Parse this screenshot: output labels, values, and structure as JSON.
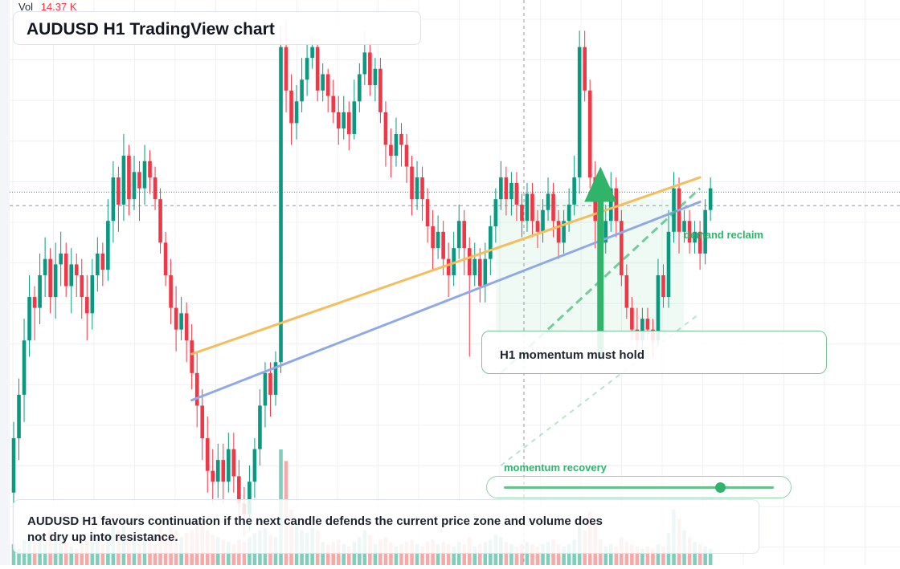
{
  "volume_readout": {
    "label": "Vol",
    "value": "14.37 K"
  },
  "title": "AUDUSD H1 TradingView chart",
  "callout": {
    "text": "H1 momentum must hold"
  },
  "zone_label": "demand reclaim",
  "momentum": {
    "label": "momentum recovery",
    "level": 0.8
  },
  "summary": "AUDUSD H1 favours continuation if the next candle defends the current price zone and volume does not dry up into resistance.",
  "colors": {
    "up": "#089981",
    "down": "#f23645",
    "vol_up": "#7fcdbb",
    "vol_down": "#f7a9a8",
    "trend_orange": "#f5bd5b",
    "trend_blue": "#8fa8ec",
    "accent_green": "#2fb46a",
    "grid": "#eef0f4"
  },
  "chart_data": {
    "type": "candlestick",
    "price_range": [
      0,
      100
    ],
    "volume_range": [
      0,
      100
    ],
    "current_price": 67.3,
    "crosshair_price": 64.8,
    "candles": [
      [
        12,
        22,
        25,
        10,
        18
      ],
      [
        22,
        30,
        33,
        18,
        14
      ],
      [
        30,
        40,
        44,
        25,
        22
      ],
      [
        40,
        48,
        52,
        37,
        26
      ],
      [
        48,
        46,
        50,
        40,
        20
      ],
      [
        46,
        52,
        56,
        43,
        24
      ],
      [
        52,
        55,
        59,
        48,
        18
      ],
      [
        55,
        48,
        57,
        45,
        30
      ],
      [
        48,
        54,
        58,
        44,
        22
      ],
      [
        54,
        56,
        60,
        50,
        26
      ],
      [
        56,
        50,
        58,
        48,
        20
      ],
      [
        50,
        54,
        57,
        45,
        16
      ],
      [
        54,
        52,
        56,
        48,
        14
      ],
      [
        52,
        48,
        55,
        44,
        18
      ],
      [
        48,
        45,
        52,
        40,
        22
      ],
      [
        45,
        52,
        55,
        42,
        20
      ],
      [
        52,
        56,
        59,
        49,
        24
      ],
      [
        56,
        53,
        58,
        50,
        18
      ],
      [
        53,
        62,
        66,
        51,
        28
      ],
      [
        62,
        70,
        73,
        58,
        36
      ],
      [
        70,
        65,
        72,
        60,
        30
      ],
      [
        65,
        74,
        78,
        62,
        34
      ],
      [
        74,
        66,
        76,
        63,
        26
      ],
      [
        66,
        71,
        74,
        64,
        22
      ],
      [
        71,
        68,
        73,
        62,
        18
      ],
      [
        68,
        73,
        76,
        65,
        22
      ],
      [
        73,
        70,
        75,
        67,
        20
      ],
      [
        70,
        66,
        72,
        64,
        18
      ],
      [
        66,
        58,
        68,
        56,
        34
      ],
      [
        58,
        52,
        60,
        50,
        28
      ],
      [
        52,
        46,
        55,
        43,
        32
      ],
      [
        46,
        42,
        50,
        38,
        30
      ],
      [
        42,
        45,
        48,
        40,
        24
      ],
      [
        45,
        40,
        47,
        36,
        28
      ],
      [
        40,
        34,
        43,
        31,
        30
      ],
      [
        34,
        28,
        38,
        24,
        36
      ],
      [
        28,
        22,
        31,
        18,
        34
      ],
      [
        22,
        16,
        26,
        12,
        30
      ],
      [
        16,
        14,
        20,
        10,
        26
      ],
      [
        14,
        18,
        21,
        11,
        24
      ],
      [
        18,
        14,
        21,
        10,
        22
      ],
      [
        14,
        20,
        23,
        12,
        20
      ],
      [
        20,
        15,
        23,
        12,
        18
      ],
      [
        15,
        10,
        18,
        6,
        22
      ],
      [
        10,
        8,
        13,
        4,
        20
      ],
      [
        8,
        14,
        17,
        5,
        24
      ],
      [
        14,
        20,
        22,
        11,
        28
      ],
      [
        20,
        28,
        31,
        17,
        30
      ],
      [
        28,
        34,
        36,
        24,
        32
      ],
      [
        34,
        30,
        36,
        26,
        26
      ],
      [
        30,
        36,
        38,
        28,
        24
      ],
      [
        36,
        94,
        98,
        34,
        100
      ],
      [
        94,
        86,
        99,
        82,
        90
      ],
      [
        86,
        80,
        89,
        76,
        48
      ],
      [
        80,
        84,
        87,
        77,
        36
      ],
      [
        84,
        88,
        92,
        82,
        30
      ],
      [
        88,
        92,
        95,
        85,
        28
      ],
      [
        92,
        94,
        96,
        90,
        32
      ],
      [
        94,
        86,
        95,
        84,
        30
      ],
      [
        86,
        89,
        91,
        84,
        20
      ],
      [
        89,
        85,
        90,
        82,
        18
      ],
      [
        85,
        82,
        88,
        80,
        20
      ],
      [
        82,
        79,
        85,
        76,
        22
      ],
      [
        79,
        82,
        85,
        77,
        18
      ],
      [
        82,
        78,
        84,
        75,
        16
      ],
      [
        78,
        84,
        88,
        77,
        20
      ],
      [
        84,
        89,
        91,
        82,
        24
      ],
      [
        89,
        93,
        97,
        87,
        30
      ],
      [
        93,
        87,
        95,
        85,
        26
      ],
      [
        87,
        90,
        92,
        84,
        18
      ],
      [
        90,
        82,
        92,
        80,
        22
      ],
      [
        82,
        76,
        84,
        72,
        24
      ],
      [
        76,
        74,
        79,
        70,
        20
      ],
      [
        74,
        78,
        81,
        72,
        16
      ],
      [
        78,
        76,
        80,
        72,
        18
      ],
      [
        76,
        72,
        78,
        69,
        20
      ],
      [
        72,
        66,
        74,
        63,
        22
      ],
      [
        66,
        70,
        73,
        64,
        18
      ],
      [
        70,
        66,
        72,
        62,
        16
      ],
      [
        66,
        61,
        68,
        58,
        20
      ],
      [
        61,
        57,
        64,
        53,
        22
      ],
      [
        57,
        60,
        63,
        55,
        18
      ],
      [
        60,
        55,
        62,
        52,
        20
      ],
      [
        55,
        52,
        58,
        48,
        18
      ],
      [
        52,
        57,
        60,
        50,
        16
      ],
      [
        57,
        62,
        65,
        55,
        20
      ],
      [
        62,
        57,
        64,
        52,
        18
      ],
      [
        57,
        52,
        59,
        37,
        24
      ],
      [
        52,
        55,
        58,
        50,
        16
      ],
      [
        55,
        50,
        57,
        47,
        18
      ],
      [
        50,
        55,
        58,
        47,
        20
      ],
      [
        55,
        61,
        63,
        52,
        22
      ],
      [
        61,
        66,
        68,
        58,
        26
      ],
      [
        66,
        70,
        73,
        64,
        24
      ],
      [
        70,
        66,
        72,
        63,
        20
      ],
      [
        66,
        69,
        71,
        63,
        18
      ],
      [
        69,
        65,
        71,
        62,
        16
      ],
      [
        65,
        62,
        67,
        59,
        18
      ],
      [
        62,
        67,
        69,
        60,
        20
      ],
      [
        67,
        62,
        69,
        59,
        18
      ],
      [
        62,
        60,
        64,
        57,
        16
      ],
      [
        60,
        64,
        66,
        58,
        18
      ],
      [
        64,
        67,
        70,
        62,
        20
      ],
      [
        67,
        62,
        69,
        59,
        22
      ],
      [
        62,
        58,
        64,
        55,
        18
      ],
      [
        58,
        62,
        64,
        56,
        16
      ],
      [
        62,
        65,
        68,
        60,
        18
      ],
      [
        65,
        70,
        74,
        63,
        22
      ],
      [
        70,
        94,
        97,
        67,
        34
      ],
      [
        94,
        86,
        97,
        84,
        30
      ],
      [
        86,
        70,
        88,
        68,
        46
      ],
      [
        70,
        62,
        73,
        57,
        40
      ],
      [
        62,
        58,
        64,
        55,
        22
      ],
      [
        58,
        62,
        65,
        56,
        16
      ],
      [
        62,
        68,
        71,
        60,
        18
      ],
      [
        68,
        62,
        70,
        59,
        16
      ],
      [
        62,
        52,
        64,
        50,
        24
      ],
      [
        52,
        46,
        54,
        44,
        20
      ],
      [
        46,
        42,
        48,
        40,
        18
      ],
      [
        42,
        40,
        46,
        38,
        16
      ],
      [
        40,
        44,
        46,
        38,
        14
      ],
      [
        44,
        42,
        46,
        40,
        16
      ],
      [
        42,
        40,
        44,
        37,
        14
      ],
      [
        40,
        52,
        55,
        39,
        18
      ],
      [
        52,
        48,
        54,
        46,
        16
      ],
      [
        48,
        60,
        64,
        46,
        28
      ],
      [
        60,
        68,
        71,
        58,
        48
      ],
      [
        68,
        60,
        70,
        56,
        40
      ],
      [
        60,
        62,
        64,
        58,
        30
      ],
      [
        62,
        58,
        64,
        56,
        24
      ],
      [
        58,
        60,
        62,
        56,
        20
      ],
      [
        60,
        56,
        62,
        53,
        18
      ],
      [
        56,
        64,
        66,
        54,
        16
      ],
      [
        64,
        68,
        70,
        62,
        14
      ]
    ],
    "trendlines": [
      {
        "color_key": "trend_orange",
        "from": [
          34,
          37.5
        ],
        "to": [
          131,
          70
        ]
      },
      {
        "color_key": "trend_blue",
        "from": [
          34,
          29
        ],
        "to": [
          131,
          65.5
        ]
      }
    ],
    "dashed_lines": [
      {
        "from": [
          93,
          34
        ],
        "to": [
          131,
          68
        ]
      },
      {
        "from": [
          93,
          17
        ],
        "to": [
          131,
          45
        ]
      }
    ],
    "zone": {
      "from_index": 93,
      "to_index": 127,
      "low": 39.5,
      "high": 66
    },
    "target_arrow": {
      "index": 112,
      "from": 37,
      "to": 72
    }
  }
}
